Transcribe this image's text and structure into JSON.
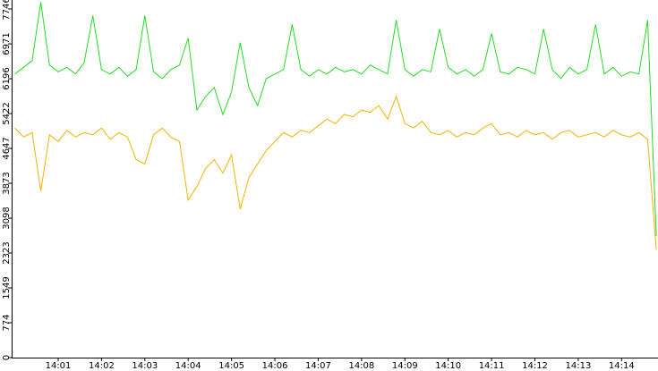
{
  "chart_data": {
    "type": "line",
    "x": [
      0,
      0.2,
      0.4,
      0.6,
      0.8,
      1,
      1.2,
      1.4,
      1.6,
      1.8,
      2,
      2.2,
      2.4,
      2.6,
      2.8,
      3,
      3.2,
      3.4,
      3.6,
      3.8,
      4,
      4.2,
      4.4,
      4.6,
      4.8,
      5,
      5.2,
      5.4,
      5.6,
      5.8,
      6,
      6.2,
      6.4,
      6.6,
      6.8,
      7,
      7.2,
      7.4,
      7.6,
      7.8,
      8,
      8.2,
      8.4,
      8.6,
      8.8,
      9,
      9.2,
      9.4,
      9.6,
      9.8,
      10,
      10.2,
      10.4,
      10.6,
      10.8,
      11,
      11.2,
      11.4,
      11.6,
      11.8,
      12,
      12.2,
      12.4,
      12.6,
      12.8,
      13,
      13.2,
      13.4,
      13.6,
      13.8,
      14,
      14.2,
      14.4,
      14.6,
      14.8
    ],
    "series": [
      {
        "color": "#22dd22",
        "values": [
          6300,
          6450,
          6600,
          7900,
          6500,
          6350,
          6450,
          6300,
          6550,
          7600,
          6400,
          6300,
          6450,
          6250,
          6400,
          7600,
          6350,
          6200,
          6400,
          6500,
          7100,
          5500,
          5800,
          6000,
          5400,
          5900,
          7000,
          6000,
          5600,
          6200,
          6300,
          6400,
          7400,
          6400,
          6250,
          6400,
          6300,
          6450,
          6350,
          6400,
          6300,
          6500,
          6400,
          6300,
          7500,
          6400,
          6250,
          6400,
          6350,
          7300,
          6450,
          6300,
          6400,
          6250,
          6400,
          7200,
          6350,
          6300,
          6450,
          6400,
          6300,
          7300,
          6400,
          6200,
          6450,
          6300,
          6400,
          7400,
          6300,
          6450,
          6250,
          6350,
          6300,
          7500,
          2700
        ]
      },
      {
        "color": "#f0b400",
        "values": [
          5100,
          4900,
          5000,
          3700,
          4950,
          4800,
          5050,
          4900,
          5000,
          4950,
          5100,
          4850,
          5000,
          4900,
          4400,
          4300,
          4950,
          5100,
          4900,
          4800,
          3500,
          3800,
          4200,
          4400,
          4100,
          4500,
          3300,
          4000,
          4300,
          4600,
          4800,
          5000,
          4900,
          5050,
          5000,
          5150,
          5300,
          5200,
          5400,
          5350,
          5500,
          5450,
          5600,
          5300,
          5800,
          5200,
          5100,
          5250,
          5000,
          4950,
          5050,
          4900,
          5000,
          4950,
          5100,
          5200,
          4950,
          5000,
          4900,
          5050,
          4950,
          5000,
          4850,
          5000,
          5050,
          4900,
          4950,
          5000,
          4900,
          5050,
          4950,
          4900,
          5000,
          4850,
          2400
        ]
      }
    ],
    "xlim": [
      -0.074,
      14.84
    ],
    "xticks": [
      {
        "value": 1,
        "label": "14:01"
      },
      {
        "value": 2,
        "label": "14:02"
      },
      {
        "value": 3,
        "label": "14:03"
      },
      {
        "value": 4,
        "label": "14:04"
      },
      {
        "value": 5,
        "label": "14:05"
      },
      {
        "value": 6,
        "label": "14:06"
      },
      {
        "value": 7,
        "label": "14:07"
      },
      {
        "value": 8,
        "label": "14:08"
      },
      {
        "value": 9,
        "label": "14:09"
      },
      {
        "value": 10,
        "label": "14:10"
      },
      {
        "value": 11,
        "label": "14:11"
      },
      {
        "value": 12,
        "label": "14:12"
      },
      {
        "value": 13,
        "label": "14:13"
      },
      {
        "value": 14,
        "label": "14:14"
      }
    ],
    "ylim": [
      0,
      7945
    ],
    "yticks": [
      0,
      774,
      1549,
      2323,
      3098,
      3873,
      4647,
      5422,
      6196,
      6971,
      7746
    ]
  }
}
